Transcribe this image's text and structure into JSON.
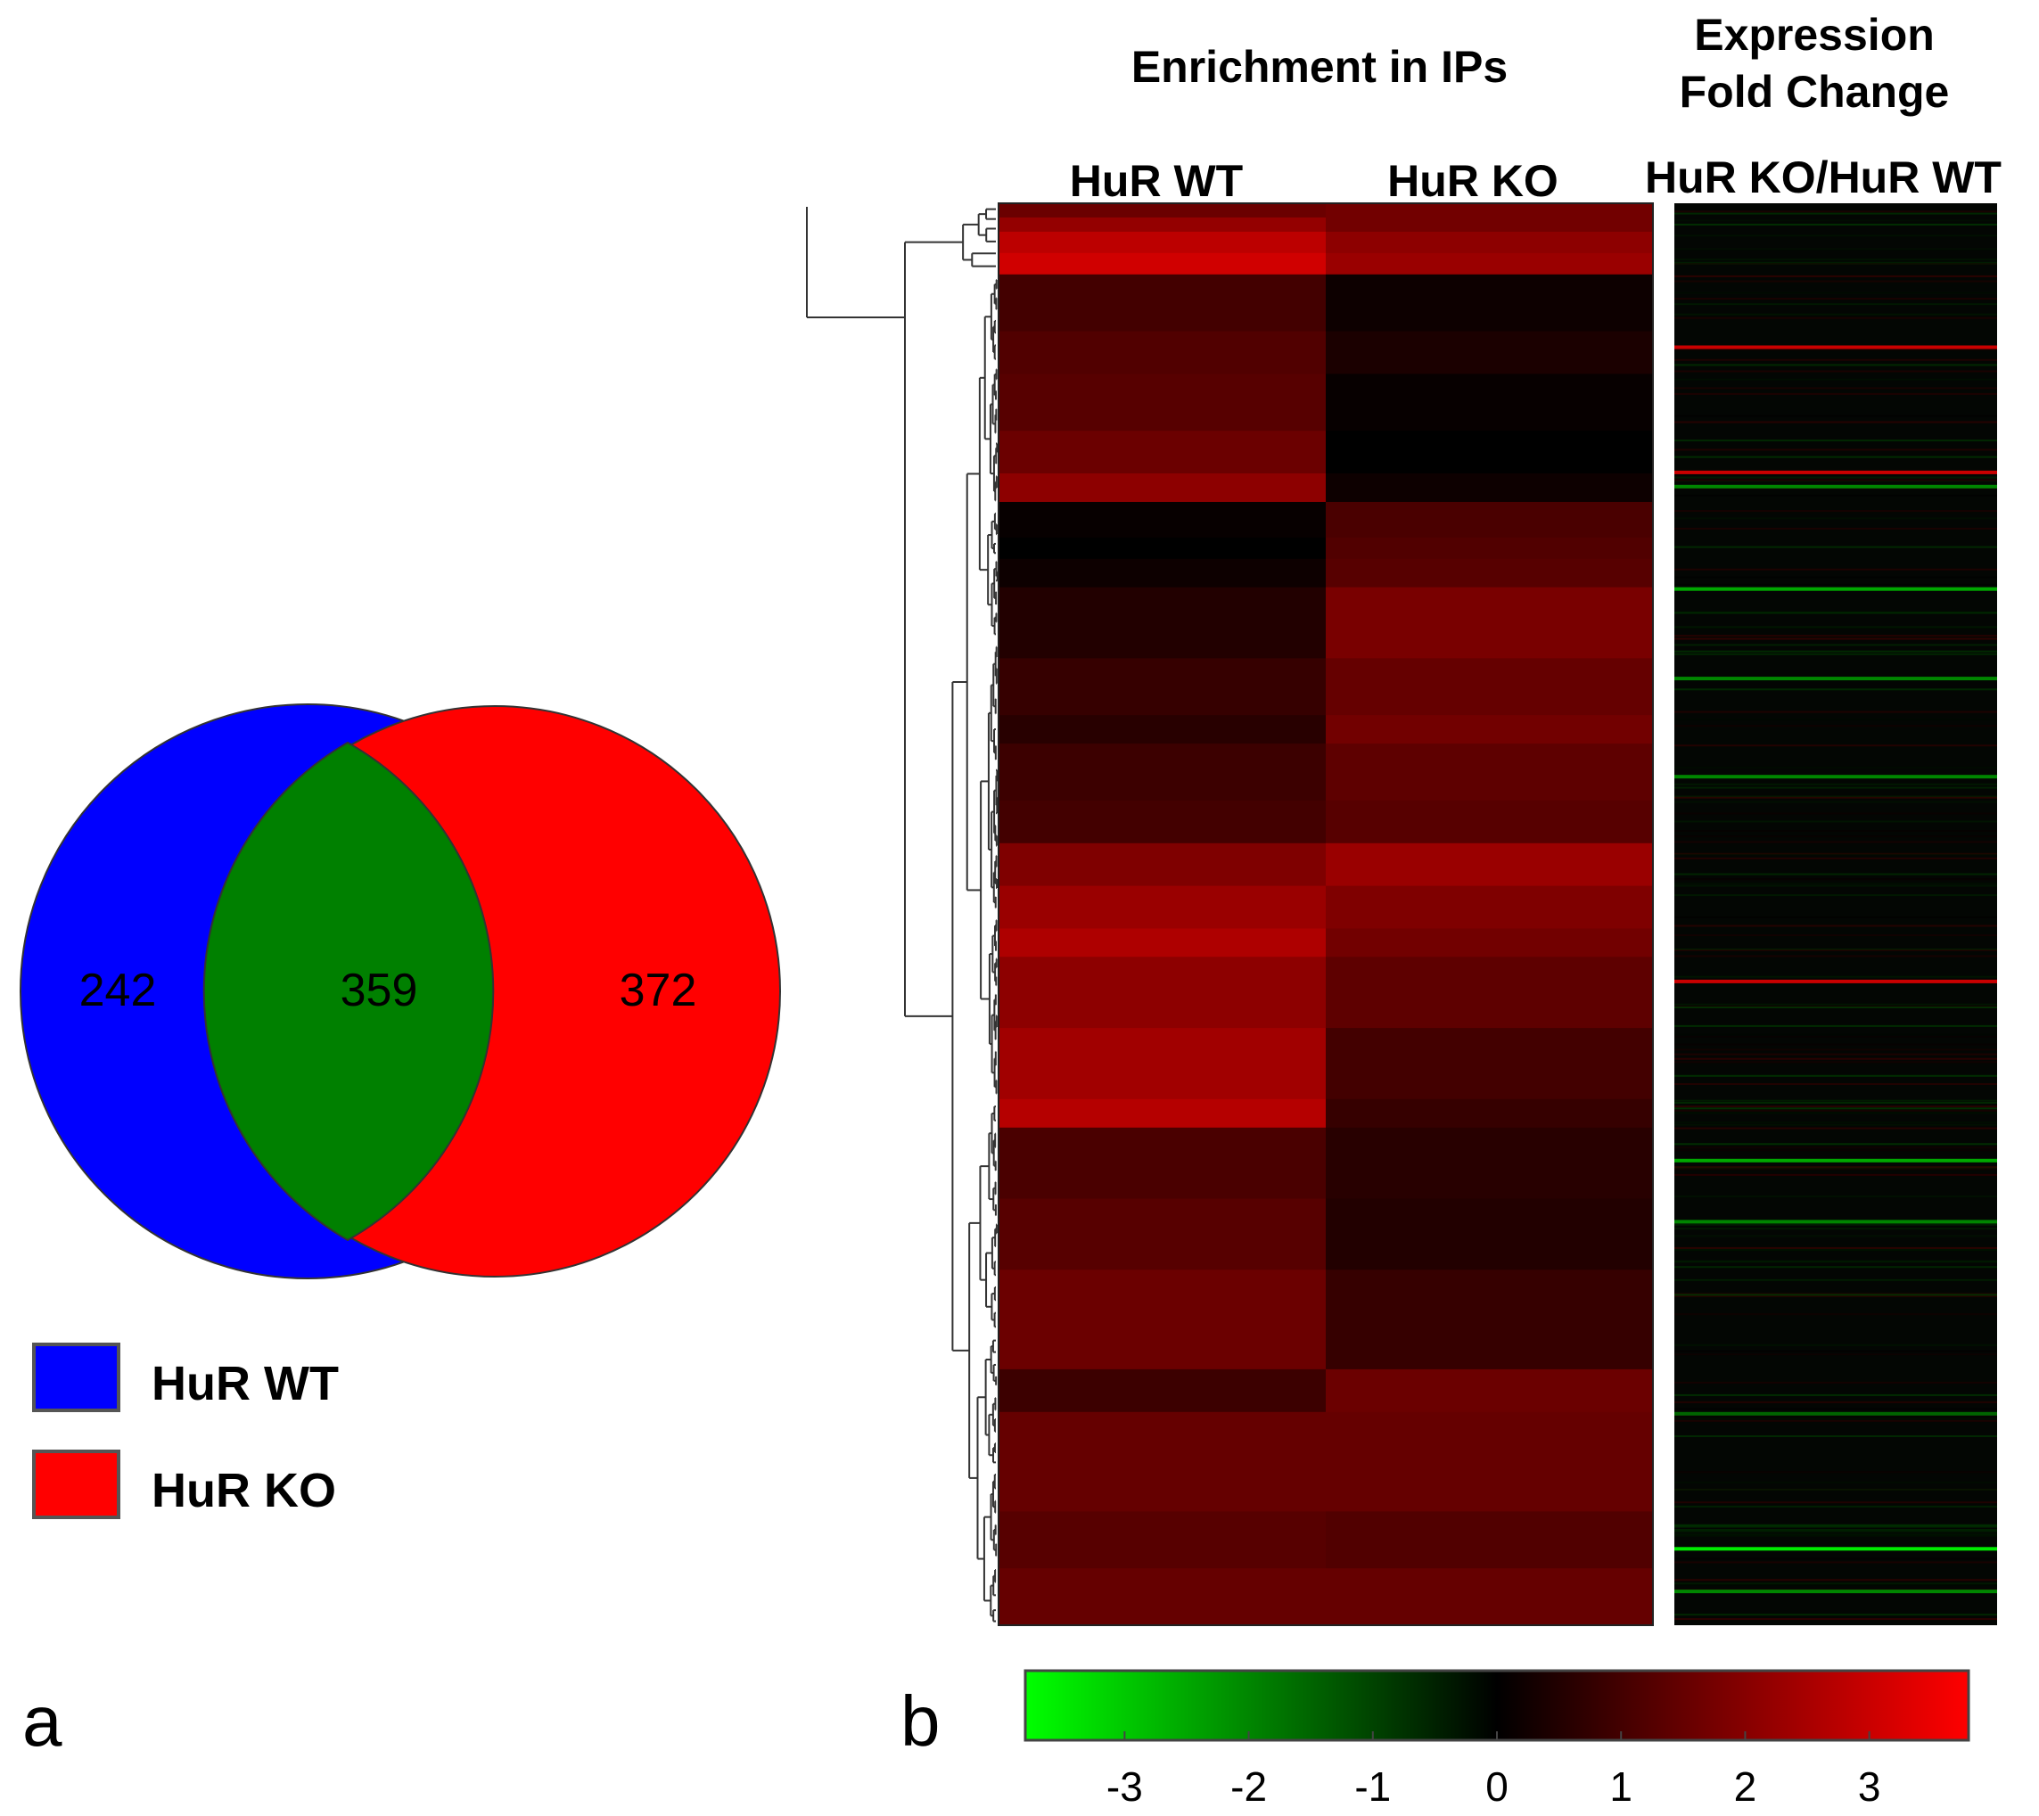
{
  "panel_a": {
    "panel_letter": "a",
    "chart_data": {
      "type": "venn",
      "sets": [
        {
          "name": "HuR WT",
          "only": 242,
          "color": "#0000ff"
        },
        {
          "name": "HuR KO",
          "only": 372,
          "color": "#ff0000"
        }
      ],
      "intersection": {
        "value": 359,
        "color": "#008000"
      }
    },
    "labels": {
      "left_only": "242",
      "overlap": "359",
      "right_only": "372"
    },
    "legend": [
      {
        "label": "HuR WT",
        "color": "#0000ff"
      },
      {
        "label": "HuR KO",
        "color": "#ff0000"
      }
    ]
  },
  "panel_b": {
    "panel_letter": "b",
    "enrichment_title": "Enrichment in IPs",
    "expression_title_line1": "Expression",
    "expression_title_line2": "Fold Change",
    "columns": [
      "HuR WT",
      "HuR KO",
      "HuR KO/HuR WT"
    ],
    "colorbar": {
      "min_color": "#00ff00",
      "mid_color": "#000000",
      "max_color": "#ff0000",
      "ticks": [
        "-3",
        "-2",
        "-1",
        "0",
        "1",
        "2",
        "3"
      ],
      "range": [
        -3.8,
        3.8
      ]
    },
    "chart_data": {
      "type": "heatmap",
      "blocks": [
        {
          "start": 0.0,
          "end": 0.01,
          "wt": 1.6,
          "ko": 1.7
        },
        {
          "start": 0.01,
          "end": 0.02,
          "wt": 2.2,
          "ko": 1.7
        },
        {
          "start": 0.02,
          "end": 0.035,
          "wt": 2.8,
          "ko": 2.1
        },
        {
          "start": 0.035,
          "end": 0.05,
          "wt": 3.1,
          "ko": 2.3
        },
        {
          "start": 0.05,
          "end": 0.09,
          "wt": 1.0,
          "ko": 0.2
        },
        {
          "start": 0.09,
          "end": 0.12,
          "wt": 1.2,
          "ko": 0.4
        },
        {
          "start": 0.12,
          "end": 0.16,
          "wt": 1.3,
          "ko": 0.1
        },
        {
          "start": 0.16,
          "end": 0.19,
          "wt": 1.6,
          "ko": 0.0
        },
        {
          "start": 0.19,
          "end": 0.21,
          "wt": 2.1,
          "ko": 0.2
        },
        {
          "start": 0.21,
          "end": 0.235,
          "wt": 0.1,
          "ko": 1.1
        },
        {
          "start": 0.235,
          "end": 0.25,
          "wt": 0.0,
          "ko": 1.2
        },
        {
          "start": 0.25,
          "end": 0.27,
          "wt": 0.2,
          "ko": 1.3
        },
        {
          "start": 0.27,
          "end": 0.32,
          "wt": 0.5,
          "ko": 1.8
        },
        {
          "start": 0.32,
          "end": 0.36,
          "wt": 0.8,
          "ko": 1.5
        },
        {
          "start": 0.36,
          "end": 0.38,
          "wt": 0.6,
          "ko": 1.7
        },
        {
          "start": 0.38,
          "end": 0.42,
          "wt": 0.9,
          "ko": 1.4
        },
        {
          "start": 0.42,
          "end": 0.45,
          "wt": 1.0,
          "ko": 1.3
        },
        {
          "start": 0.45,
          "end": 0.48,
          "wt": 1.9,
          "ko": 2.3
        },
        {
          "start": 0.48,
          "end": 0.51,
          "wt": 2.3,
          "ko": 1.9
        },
        {
          "start": 0.51,
          "end": 0.53,
          "wt": 2.6,
          "ko": 1.7
        },
        {
          "start": 0.53,
          "end": 0.58,
          "wt": 2.1,
          "ko": 1.4
        },
        {
          "start": 0.58,
          "end": 0.63,
          "wt": 2.4,
          "ko": 1.0
        },
        {
          "start": 0.63,
          "end": 0.65,
          "wt": 2.7,
          "ko": 0.8
        },
        {
          "start": 0.65,
          "end": 0.7,
          "wt": 1.1,
          "ko": 0.6
        },
        {
          "start": 0.7,
          "end": 0.75,
          "wt": 1.3,
          "ko": 0.5
        },
        {
          "start": 0.75,
          "end": 0.82,
          "wt": 1.6,
          "ko": 0.8
        },
        {
          "start": 0.82,
          "end": 0.85,
          "wt": 0.9,
          "ko": 1.6
        },
        {
          "start": 0.85,
          "end": 0.92,
          "wt": 1.5,
          "ko": 1.5
        },
        {
          "start": 0.92,
          "end": 0.96,
          "wt": 1.3,
          "ko": 1.2
        },
        {
          "start": 0.96,
          "end": 1.0,
          "wt": 1.5,
          "ko": 1.5
        }
      ],
      "fold_change_highlights": [
        {
          "pos": 0.1,
          "value": 3.0
        },
        {
          "pos": 0.188,
          "value": 3.0
        },
        {
          "pos": 0.198,
          "value": -2.0
        },
        {
          "pos": 0.27,
          "value": -2.5
        },
        {
          "pos": 0.333,
          "value": -2.0
        },
        {
          "pos": 0.402,
          "value": -2.0
        },
        {
          "pos": 0.546,
          "value": 3.0
        },
        {
          "pos": 0.672,
          "value": -2.5
        },
        {
          "pos": 0.715,
          "value": -2.0
        },
        {
          "pos": 0.85,
          "value": -1.5
        },
        {
          "pos": 0.945,
          "value": -3.5
        },
        {
          "pos": 0.975,
          "value": -2.0
        }
      ]
    }
  }
}
